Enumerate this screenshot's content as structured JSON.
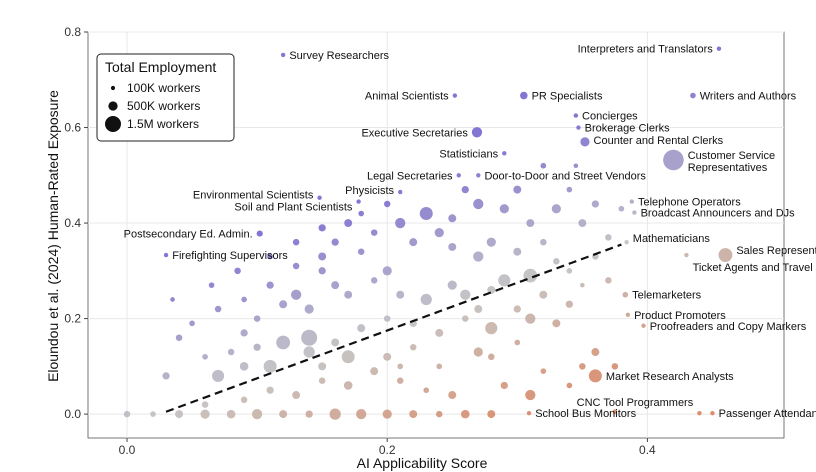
{
  "chart_data": {
    "type": "scatter",
    "xlabel": "AI Applicability Score",
    "ylabel": "Eloundou et al. (2024) Human-Rated Exposure",
    "xlim": [
      -0.03,
      0.505
    ],
    "ylim": [
      -0.05,
      0.8
    ],
    "xticks": [
      0.0,
      0.2,
      0.4
    ],
    "xtick_labels": [
      "0.0",
      "0.2",
      "0.4"
    ],
    "yticks": [
      0.0,
      0.2,
      0.4,
      0.6,
      0.8
    ],
    "ytick_labels": [
      "0.0",
      "0.2",
      "0.4",
      "0.6",
      "0.8"
    ],
    "grid": true,
    "trend_line": {
      "x": [
        0.03,
        0.38
      ],
      "y": [
        0.005,
        0.355
      ],
      "style": "dashed"
    },
    "legend": {
      "title": "Total Employment",
      "placement": "top-left",
      "entries": [
        {
          "label": "100K workers",
          "size": 100
        },
        {
          "label": "500K workers",
          "size": 500
        },
        {
          "label": "1.5M workers",
          "size": 1500
        }
      ]
    },
    "colors": {
      "low_exposure": "#d9825d",
      "mid": "#c0c0c0",
      "high_exposure": "#7466cf"
    },
    "labeled_points": [
      {
        "label": "Survey Researchers",
        "x": 0.12,
        "y": 0.752,
        "size": 60
      },
      {
        "label": "Interpreters and Translators",
        "x": 0.455,
        "y": 0.765,
        "size": 80
      },
      {
        "label": "Animal Scientists",
        "x": 0.252,
        "y": 0.667,
        "size": 30
      },
      {
        "label": "PR Specialists",
        "x": 0.305,
        "y": 0.667,
        "size": 270
      },
      {
        "label": "Writers and Authors",
        "x": 0.435,
        "y": 0.667,
        "size": 150
      },
      {
        "label": "Concierges",
        "x": 0.345,
        "y": 0.625,
        "size": 40
      },
      {
        "label": "Executive Secretaries",
        "x": 0.269,
        "y": 0.59,
        "size": 500
      },
      {
        "label": "Brokerage Clerks",
        "x": 0.347,
        "y": 0.6,
        "size": 60
      },
      {
        "label": "Counter and Rental Clerks",
        "x": 0.352,
        "y": 0.57,
        "size": 400
      },
      {
        "label": "Statisticians",
        "x": 0.29,
        "y": 0.546,
        "size": 40
      },
      {
        "label": "Customer Service Representatives",
        "x": 0.42,
        "y": 0.532,
        "size": 2000
      },
      {
        "label": "Legal Secretaries",
        "x": 0.255,
        "y": 0.5,
        "size": 50
      },
      {
        "label": "Door-to-Door and Street Vendors",
        "x": 0.27,
        "y": 0.5,
        "size": 60
      },
      {
        "label": "Physicists",
        "x": 0.21,
        "y": 0.465,
        "size": 20
      },
      {
        "label": "Environmental Scientists",
        "x": 0.148,
        "y": 0.453,
        "size": 90
      },
      {
        "label": "Soil and Plant Scientists",
        "x": 0.178,
        "y": 0.445,
        "size": 30
      },
      {
        "label": "Telephone Operators",
        "x": 0.388,
        "y": 0.445,
        "size": 20
      },
      {
        "label": "Broadcast Announcers and DJs",
        "x": 0.39,
        "y": 0.422,
        "size": 50
      },
      {
        "label": "Postsecondary Ed. Admin.",
        "x": 0.102,
        "y": 0.378,
        "size": 180
      },
      {
        "label": "Mathematicians",
        "x": 0.384,
        "y": 0.36,
        "size": 30
      },
      {
        "label": "Firefighting Supervisors",
        "x": 0.03,
        "y": 0.333,
        "size": 80
      },
      {
        "label": "Sales Representatives",
        "x": 0.46,
        "y": 0.333,
        "size": 900
      },
      {
        "label": "Ticket Agents and Travel Clerks",
        "x": 0.43,
        "y": 0.333,
        "size": 60
      },
      {
        "label": "Telemarketers",
        "x": 0.383,
        "y": 0.25,
        "size": 150
      },
      {
        "label": "Product Promoters",
        "x": 0.385,
        "y": 0.208,
        "size": 90
      },
      {
        "label": "Proofreaders and Copy Markers",
        "x": 0.397,
        "y": 0.185,
        "size": 40
      },
      {
        "label": "Market Research Analysts",
        "x": 0.36,
        "y": 0.08,
        "size": 800
      },
      {
        "label": "CNC Tool Programmers",
        "x": 0.44,
        "y": 0.002,
        "size": 30
      },
      {
        "label": "Passenger Attendants",
        "x": 0.45,
        "y": 0.002,
        "size": 80
      },
      {
        "label": "School Bus Monitors",
        "x": 0.309,
        "y": 0.002,
        "size": 50
      }
    ],
    "background_points": [
      {
        "x": 0.0,
        "y": 0.0,
        "size": 200
      },
      {
        "x": 0.02,
        "y": 0.0,
        "size": 150
      },
      {
        "x": 0.04,
        "y": 0.0,
        "size": 300
      },
      {
        "x": 0.06,
        "y": 0.0,
        "size": 400
      },
      {
        "x": 0.08,
        "y": 0.0,
        "size": 350
      },
      {
        "x": 0.1,
        "y": 0.0,
        "size": 500
      },
      {
        "x": 0.12,
        "y": 0.0,
        "size": 300
      },
      {
        "x": 0.14,
        "y": 0.0,
        "size": 250
      },
      {
        "x": 0.16,
        "y": 0.0,
        "size": 600
      },
      {
        "x": 0.18,
        "y": 0.0,
        "size": 500
      },
      {
        "x": 0.2,
        "y": 0.0,
        "size": 400
      },
      {
        "x": 0.22,
        "y": 0.0,
        "size": 300
      },
      {
        "x": 0.24,
        "y": 0.0,
        "size": 200
      },
      {
        "x": 0.26,
        "y": 0.0,
        "size": 350
      },
      {
        "x": 0.28,
        "y": 0.0,
        "size": 300
      },
      {
        "x": 0.25,
        "y": 0.04,
        "size": 300
      },
      {
        "x": 0.03,
        "y": 0.08,
        "size": 250
      },
      {
        "x": 0.06,
        "y": 0.02,
        "size": 200
      },
      {
        "x": 0.09,
        "y": 0.03,
        "size": 200
      },
      {
        "x": 0.11,
        "y": 0.05,
        "size": 250
      },
      {
        "x": 0.13,
        "y": 0.04,
        "size": 300
      },
      {
        "x": 0.15,
        "y": 0.07,
        "size": 200
      },
      {
        "x": 0.17,
        "y": 0.06,
        "size": 350
      },
      {
        "x": 0.19,
        "y": 0.09,
        "size": 300
      },
      {
        "x": 0.21,
        "y": 0.07,
        "size": 200
      },
      {
        "x": 0.23,
        "y": 0.05,
        "size": 150
      },
      {
        "x": 0.29,
        "y": 0.06,
        "size": 250
      },
      {
        "x": 0.31,
        "y": 0.04,
        "size": 500
      },
      {
        "x": 0.32,
        "y": 0.09,
        "size": 150
      },
      {
        "x": 0.35,
        "y": 0.1,
        "size": 200
      },
      {
        "x": 0.34,
        "y": 0.06,
        "size": 150
      },
      {
        "x": 0.375,
        "y": 0.005,
        "size": 100
      },
      {
        "x": 0.36,
        "y": 0.13,
        "size": 300
      },
      {
        "x": 0.07,
        "y": 0.08,
        "size": 700
      },
      {
        "x": 0.09,
        "y": 0.1,
        "size": 350
      },
      {
        "x": 0.11,
        "y": 0.1,
        "size": 800
      },
      {
        "x": 0.12,
        "y": 0.15,
        "size": 900
      },
      {
        "x": 0.14,
        "y": 0.13,
        "size": 600
      },
      {
        "x": 0.16,
        "y": 0.15,
        "size": 300
      },
      {
        "x": 0.17,
        "y": 0.12,
        "size": 800
      },
      {
        "x": 0.15,
        "y": 0.1,
        "size": 300
      },
      {
        "x": 0.2,
        "y": 0.12,
        "size": 300
      },
      {
        "x": 0.21,
        "y": 0.1,
        "size": 150
      },
      {
        "x": 0.22,
        "y": 0.14,
        "size": 200
      },
      {
        "x": 0.24,
        "y": 0.1,
        "size": 150
      },
      {
        "x": 0.27,
        "y": 0.13,
        "size": 400
      },
      {
        "x": 0.28,
        "y": 0.12,
        "size": 200
      },
      {
        "x": 0.3,
        "y": 0.15,
        "size": 150
      },
      {
        "x": 0.31,
        "y": 0.2,
        "size": 500
      },
      {
        "x": 0.33,
        "y": 0.19,
        "size": 300
      },
      {
        "x": 0.34,
        "y": 0.23,
        "size": 250
      },
      {
        "x": 0.28,
        "y": 0.18,
        "size": 700
      },
      {
        "x": 0.26,
        "y": 0.2,
        "size": 200
      },
      {
        "x": 0.24,
        "y": 0.17,
        "size": 300
      },
      {
        "x": 0.22,
        "y": 0.19,
        "size": 250
      },
      {
        "x": 0.2,
        "y": 0.2,
        "size": 200
      },
      {
        "x": 0.18,
        "y": 0.18,
        "size": 300
      },
      {
        "x": 0.14,
        "y": 0.16,
        "size": 1200
      },
      {
        "x": 0.1,
        "y": 0.14,
        "size": 250
      },
      {
        "x": 0.08,
        "y": 0.13,
        "size": 200
      },
      {
        "x": 0.06,
        "y": 0.12,
        "size": 150
      },
      {
        "x": 0.09,
        "y": 0.17,
        "size": 250
      },
      {
        "x": 0.1,
        "y": 0.2,
        "size": 200
      },
      {
        "x": 0.12,
        "y": 0.23,
        "size": 300
      },
      {
        "x": 0.13,
        "y": 0.25,
        "size": 500
      },
      {
        "x": 0.14,
        "y": 0.22,
        "size": 400
      },
      {
        "x": 0.16,
        "y": 0.27,
        "size": 300
      },
      {
        "x": 0.15,
        "y": 0.3,
        "size": 250
      },
      {
        "x": 0.17,
        "y": 0.25,
        "size": 300
      },
      {
        "x": 0.19,
        "y": 0.28,
        "size": 200
      },
      {
        "x": 0.2,
        "y": 0.3,
        "size": 400
      },
      {
        "x": 0.21,
        "y": 0.25,
        "size": 300
      },
      {
        "x": 0.23,
        "y": 0.24,
        "size": 600
      },
      {
        "x": 0.25,
        "y": 0.27,
        "size": 400
      },
      {
        "x": 0.26,
        "y": 0.25,
        "size": 500
      },
      {
        "x": 0.28,
        "y": 0.26,
        "size": 300
      },
      {
        "x": 0.29,
        "y": 0.28,
        "size": 700
      },
      {
        "x": 0.3,
        "y": 0.22,
        "size": 250
      },
      {
        "x": 0.32,
        "y": 0.25,
        "size": 300
      },
      {
        "x": 0.31,
        "y": 0.29,
        "size": 900
      },
      {
        "x": 0.33,
        "y": 0.32,
        "size": 200
      },
      {
        "x": 0.34,
        "y": 0.3,
        "size": 150
      },
      {
        "x": 0.35,
        "y": 0.27,
        "size": 100
      },
      {
        "x": 0.36,
        "y": 0.33,
        "size": 200
      },
      {
        "x": 0.32,
        "y": 0.36,
        "size": 200
      },
      {
        "x": 0.3,
        "y": 0.34,
        "size": 300
      },
      {
        "x": 0.28,
        "y": 0.36,
        "size": 400
      },
      {
        "x": 0.27,
        "y": 0.33,
        "size": 500
      },
      {
        "x": 0.25,
        "y": 0.35,
        "size": 300
      },
      {
        "x": 0.24,
        "y": 0.38,
        "size": 400
      },
      {
        "x": 0.22,
        "y": 0.36,
        "size": 300
      },
      {
        "x": 0.21,
        "y": 0.4,
        "size": 500
      },
      {
        "x": 0.23,
        "y": 0.42,
        "size": 800
      },
      {
        "x": 0.25,
        "y": 0.41,
        "size": 300
      },
      {
        "x": 0.27,
        "y": 0.44,
        "size": 500
      },
      {
        "x": 0.29,
        "y": 0.43,
        "size": 400
      },
      {
        "x": 0.31,
        "y": 0.4,
        "size": 300
      },
      {
        "x": 0.33,
        "y": 0.43,
        "size": 400
      },
      {
        "x": 0.35,
        "y": 0.4,
        "size": 300
      },
      {
        "x": 0.37,
        "y": 0.37,
        "size": 200
      },
      {
        "x": 0.36,
        "y": 0.44,
        "size": 250
      },
      {
        "x": 0.34,
        "y": 0.47,
        "size": 150
      },
      {
        "x": 0.3,
        "y": 0.47,
        "size": 300
      },
      {
        "x": 0.26,
        "y": 0.47,
        "size": 250
      },
      {
        "x": 0.2,
        "y": 0.44,
        "size": 200
      },
      {
        "x": 0.19,
        "y": 0.38,
        "size": 200
      },
      {
        "x": 0.17,
        "y": 0.4,
        "size": 300
      },
      {
        "x": 0.16,
        "y": 0.36,
        "size": 250
      },
      {
        "x": 0.15,
        "y": 0.33,
        "size": 300
      },
      {
        "x": 0.18,
        "y": 0.34,
        "size": 200
      },
      {
        "x": 0.13,
        "y": 0.31,
        "size": 200
      },
      {
        "x": 0.11,
        "y": 0.27,
        "size": 250
      },
      {
        "x": 0.09,
        "y": 0.24,
        "size": 150
      },
      {
        "x": 0.07,
        "y": 0.22,
        "size": 200
      },
      {
        "x": 0.05,
        "y": 0.19,
        "size": 150
      },
      {
        "x": 0.04,
        "y": 0.16,
        "size": 200
      },
      {
        "x": 0.035,
        "y": 0.24,
        "size": 100
      },
      {
        "x": 0.065,
        "y": 0.27,
        "size": 150
      },
      {
        "x": 0.085,
        "y": 0.3,
        "size": 200
      },
      {
        "x": 0.11,
        "y": 0.33,
        "size": 150
      },
      {
        "x": 0.13,
        "y": 0.36,
        "size": 200
      },
      {
        "x": 0.15,
        "y": 0.39,
        "size": 250
      },
      {
        "x": 0.18,
        "y": 0.42,
        "size": 150
      },
      {
        "x": 0.345,
        "y": 0.52,
        "size": 100
      },
      {
        "x": 0.32,
        "y": 0.52,
        "size": 150
      },
      {
        "x": 0.38,
        "y": 0.43,
        "size": 150
      },
      {
        "x": 0.37,
        "y": 0.28,
        "size": 200
      },
      {
        "x": 0.375,
        "y": 0.1,
        "size": 200
      },
      {
        "x": 0.27,
        "y": 0.22,
        "size": 300
      }
    ]
  }
}
